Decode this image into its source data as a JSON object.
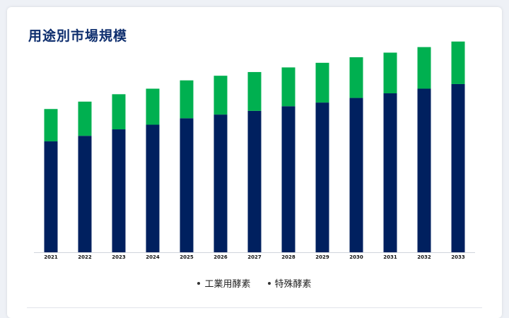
{
  "title": "用途別市場規模",
  "colors": {
    "industrial": "#00205f",
    "specialty": "#00b050"
  },
  "chart_data": {
    "type": "bar",
    "stacked": true,
    "categories": [
      "2021",
      "2022",
      "2023",
      "2024",
      "2025",
      "2026",
      "2027",
      "2028",
      "2029",
      "2030",
      "2031",
      "2032",
      "2033"
    ],
    "series": [
      {
        "name": "工業用酵素",
        "values": [
          60,
          63,
          66.5,
          69,
          72.5,
          74.5,
          76.5,
          79,
          81,
          83.5,
          86,
          88.5,
          91
        ]
      },
      {
        "name": "特殊酵素",
        "values": [
          17.5,
          18.5,
          19,
          19.5,
          20.5,
          21,
          21,
          21,
          21.5,
          22,
          22,
          22.5,
          23
        ]
      }
    ],
    "ylim": [
      0,
      125
    ],
    "xlabel": "",
    "ylabel": "",
    "grid": false,
    "legend": "bottom"
  }
}
